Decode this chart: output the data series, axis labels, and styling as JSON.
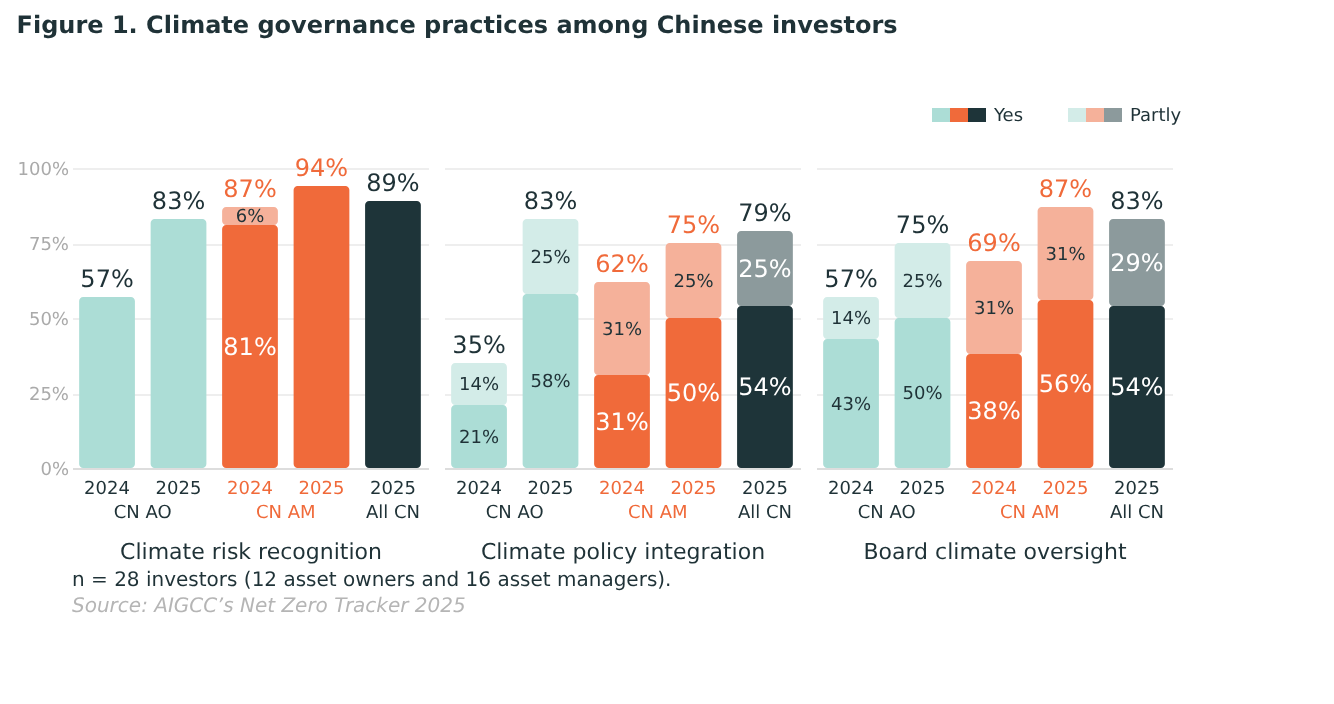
{
  "chart_data": [
    {
      "type": "bar",
      "stacked": true,
      "title": "Figure 1. Climate governance practices among Chinese investors",
      "xlabel": "Climate risk recognition",
      "categories": [
        "2024",
        "2025",
        "2024",
        "2025",
        "2025"
      ],
      "ylim": [
        0,
        100
      ],
      "yticks": [
        {
          "value": 0,
          "label": "0%"
        },
        {
          "value": 25,
          "label": "25%"
        },
        {
          "value": 50,
          "label": "50%"
        },
        {
          "value": 75,
          "label": "75%"
        },
        {
          "value": 100,
          "label": "100%"
        }
      ],
      "grid": "y",
      "series": [
        {
          "colors": [
            "#acddd6",
            "#acddd6",
            "#f06a3a",
            "#f06a3a",
            "#1e3439"
          ],
          "values": [
            57,
            83,
            81,
            94,
            89
          ],
          "value_labels": [
            null,
            null,
            "81%",
            null,
            null
          ]
        },
        {
          "colors": [
            "#d3ece8",
            "#d3ece8",
            "#f5b19a",
            "#f5b19a",
            "#8c9a9c"
          ],
          "values": [
            null,
            null,
            6,
            null,
            null
          ],
          "value_labels": [
            null,
            null,
            "6%",
            null,
            null
          ]
        }
      ],
      "totals": [
        "57%",
        "83%",
        "87%",
        "94%",
        "89%"
      ],
      "annotations": [
        "CN AO",
        "CN AM",
        "All CN",
        "n = 28 investors (12 asset owners and 16 asset managers).",
        "Source: AIGCC’s Net Zero Tracker 2025"
      ]
    },
    {
      "type": "bar",
      "stacked": true,
      "xlabel": "Climate policy integration",
      "categories": [
        "2024",
        "2025",
        "2024",
        "2025",
        "2025"
      ],
      "ylim": [
        0,
        100
      ],
      "yticks": [
        0,
        25,
        50,
        75,
        100
      ],
      "grid": "y",
      "tick_labels": "x",
      "series": [
        {
          "colors": [
            "#acddd6",
            "#acddd6",
            "#f06a3a",
            "#f06a3a",
            "#1e3439"
          ],
          "values": [
            21,
            58,
            31,
            50,
            54
          ],
          "value_labels": [
            "21%",
            "58%",
            "31%",
            "50%",
            "54%"
          ]
        },
        {
          "colors": [
            "#d3ece8",
            "#d3ece8",
            "#f5b19a",
            "#f5b19a",
            "#8c9a9c"
          ],
          "values": [
            14,
            25,
            31,
            25,
            25
          ],
          "value_labels": [
            "14%",
            "25%",
            "31%",
            "25%",
            "25%"
          ]
        }
      ],
      "totals": [
        "35%",
        "83%",
        "62%",
        "75%",
        "79%"
      ],
      "annotations": [
        "CN AO",
        "CN AM",
        "All CN"
      ]
    },
    {
      "type": "bar",
      "stacked": true,
      "xlabel": "Board climate oversight",
      "categories": [
        "2024",
        "2025",
        "2024",
        "2025",
        "2025"
      ],
      "ylim": [
        0,
        100
      ],
      "yticks": [
        0,
        25,
        50,
        75,
        100
      ],
      "grid": "y",
      "tick_labels": "x",
      "legend": "top right",
      "series": [
        {
          "name": "Yes",
          "colors": [
            "#acddd6",
            "#acddd6",
            "#f06a3a",
            "#f06a3a",
            "#1e3439"
          ],
          "values": [
            43,
            50,
            38,
            56,
            54
          ],
          "value_labels": [
            "43%",
            "50%",
            "38%",
            "56%",
            "54%"
          ]
        },
        {
          "name": "Partly",
          "colors": [
            "#d3ece8",
            "#d3ece8",
            "#f5b19a",
            "#f5b19a",
            "#8c9a9c"
          ],
          "values": [
            14,
            25,
            31,
            31,
            29
          ],
          "value_labels": [
            "14%",
            "25%",
            "31%",
            "31%",
            "29%"
          ]
        }
      ],
      "totals": [
        "57%",
        "75%",
        "69%",
        "87%",
        "83%"
      ],
      "annotations": [
        "CN AO",
        "CN AM",
        "All CN"
      ]
    }
  ]
}
